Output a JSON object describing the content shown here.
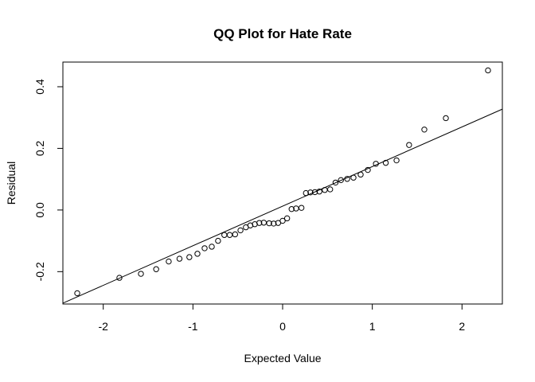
{
  "chart_data": {
    "type": "scatter",
    "title": "QQ Plot for Hate Rate",
    "xlabel": "Expected Value",
    "ylabel": "Residual",
    "xlim": [
      -2.45,
      2.45
    ],
    "ylim": [
      -0.305,
      0.48
    ],
    "xticks": [
      -2,
      -1,
      0,
      1,
      2
    ],
    "xtick_labels": [
      "-2",
      "-1",
      "0",
      "1",
      "2"
    ],
    "yticks": [
      -0.2,
      0.0,
      0.2,
      0.4
    ],
    "ytick_labels": [
      "-0.2",
      "0.0",
      "0.2",
      "0.4"
    ],
    "grid": false,
    "legend": "none",
    "reference_line": {
      "intercept": 0.0125,
      "slope": 0.1285
    },
    "x": [
      -2.29,
      -1.82,
      -1.58,
      -1.41,
      -1.27,
      -1.15,
      -1.04,
      -0.95,
      -0.87,
      -0.79,
      -0.72,
      -0.65,
      -0.59,
      -0.53,
      -0.47,
      -0.41,
      -0.36,
      -0.31,
      -0.26,
      -0.21,
      -0.15,
      -0.1,
      -0.05,
      0.0,
      0.05,
      0.1,
      0.15,
      0.21,
      0.26,
      0.31,
      0.36,
      0.41,
      0.47,
      0.53,
      0.59,
      0.65,
      0.72,
      0.79,
      0.87,
      0.95,
      1.04,
      1.15,
      1.27,
      1.41,
      1.58,
      1.82,
      2.29
    ],
    "y": [
      -0.27,
      -0.22,
      -0.207,
      -0.192,
      -0.167,
      -0.158,
      -0.153,
      -0.142,
      -0.124,
      -0.119,
      -0.1,
      -0.081,
      -0.081,
      -0.079,
      -0.066,
      -0.056,
      -0.05,
      -0.046,
      -0.042,
      -0.041,
      -0.043,
      -0.044,
      -0.042,
      -0.035,
      -0.027,
      0.003,
      0.005,
      0.007,
      0.055,
      0.057,
      0.058,
      0.06,
      0.065,
      0.067,
      0.089,
      0.097,
      0.101,
      0.105,
      0.115,
      0.13,
      0.15,
      0.153,
      0.161,
      0.211,
      0.261,
      0.298,
      0.453
    ]
  }
}
